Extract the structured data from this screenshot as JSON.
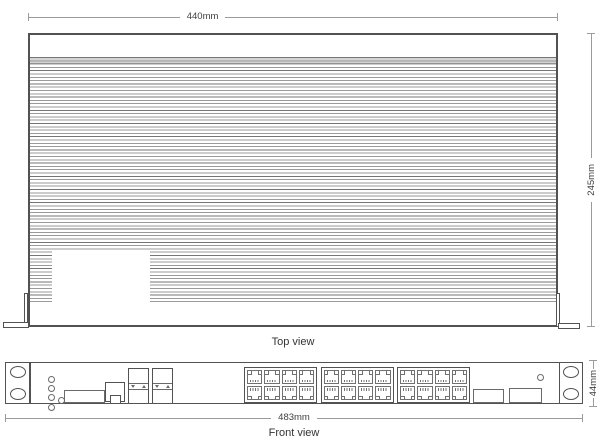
{
  "diagram": {
    "top_view": {
      "caption": "Top view",
      "width_dimension": "440mm",
      "depth_dimension": "245mm",
      "fin_count": 75,
      "has_cutout": true,
      "mounting_brackets": 2
    },
    "front_view": {
      "caption": "Front view",
      "width_dimension": "483mm",
      "height_dimension": "44mm",
      "led_count": 4,
      "has_extra_led": true,
      "screw_holes_per_ear": 2,
      "sfp_cage_count": 2,
      "rj45_blocks": {
        "count": 3,
        "columns": 4,
        "rows": 2,
        "total_ports": 24
      },
      "blank_plate_count": 2
    },
    "colors": {
      "outline": "#525252",
      "port_outline": "#707070",
      "fin_line": "#9a9a9a",
      "dim_line": "#9b9b9b",
      "text": "#3f3f3f"
    }
  }
}
